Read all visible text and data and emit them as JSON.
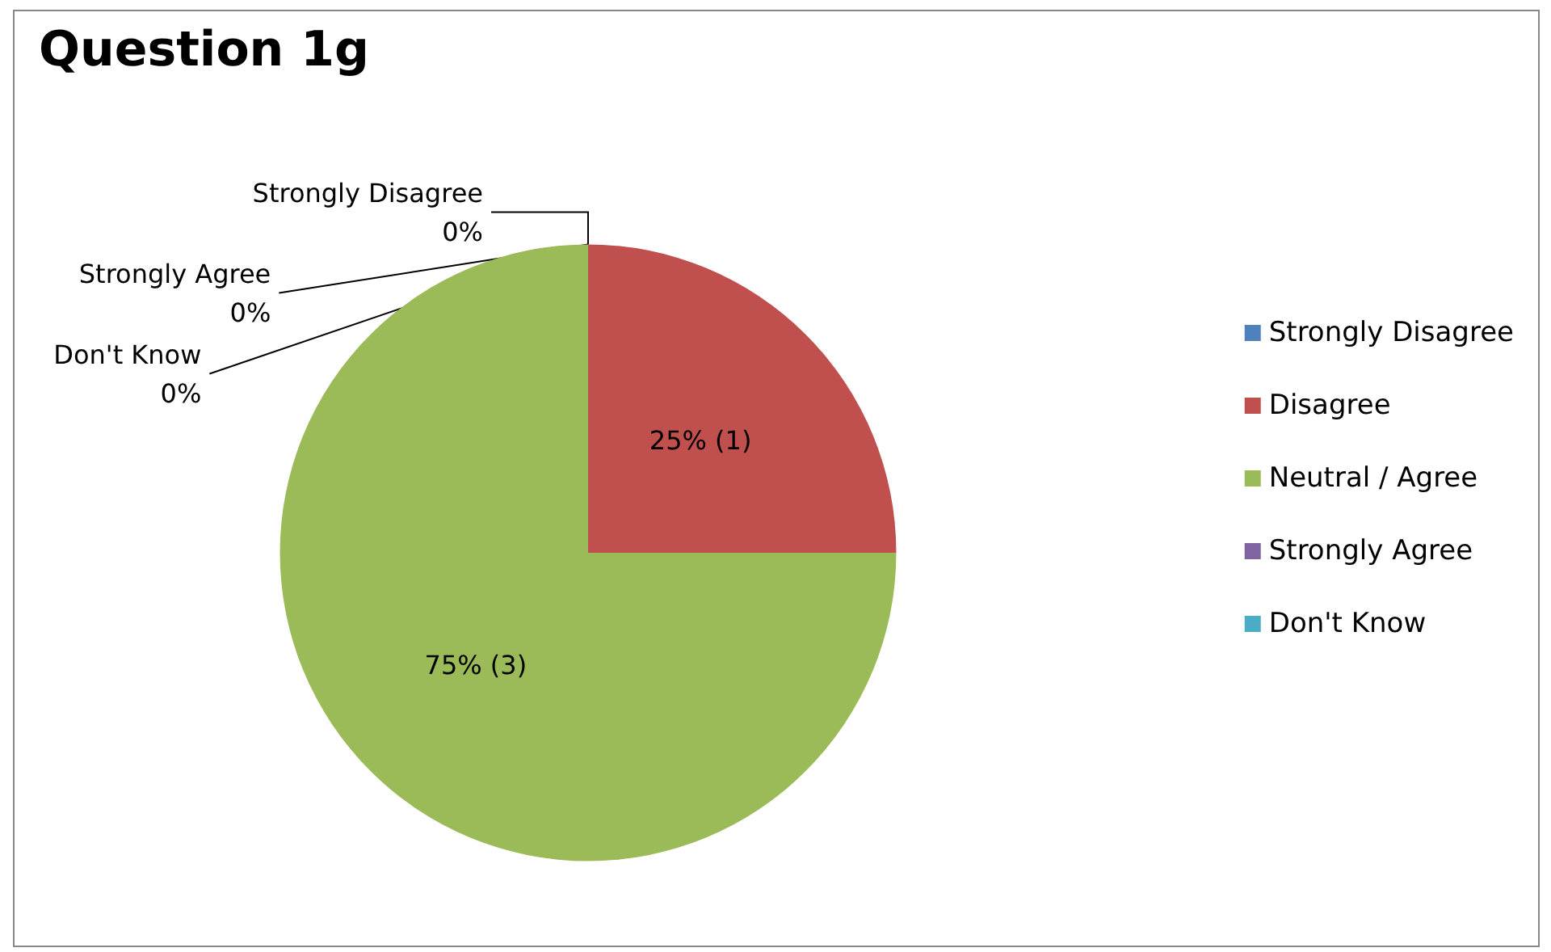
{
  "chart_data": {
    "type": "pie",
    "title": "Question 1g",
    "categories": [
      "Strongly Disagree",
      "Disagree",
      "Neutral / Agree",
      "Strongly Agree",
      "Don't Know"
    ],
    "values": [
      0,
      25,
      75,
      0,
      0
    ],
    "value_labels": [
      "0%",
      "25% (1)",
      "75% (3)",
      "0%",
      "0%"
    ],
    "colors": [
      "#4f81bd",
      "#c0504d",
      "#9bbb59",
      "#8064a2",
      "#4bacc6"
    ],
    "legend": "right"
  }
}
